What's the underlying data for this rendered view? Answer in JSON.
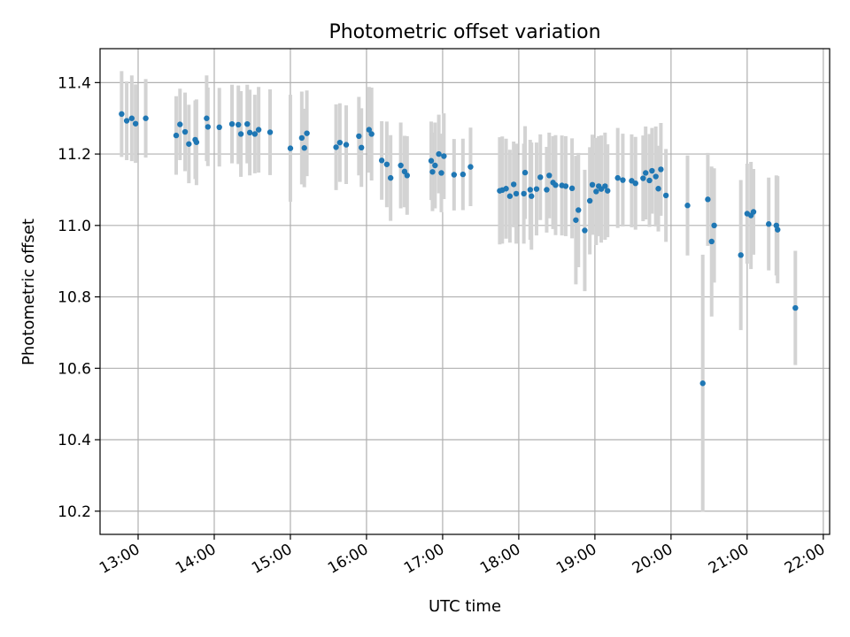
{
  "chart_data": {
    "type": "scatter",
    "title": "Photometric offset variation",
    "xlabel": "UTC time",
    "ylabel": "Photometric offset",
    "xlim": [
      "12:30",
      "22:05"
    ],
    "ylim": [
      10.135,
      11.495
    ],
    "x_ticks": [
      "13:00",
      "14:00",
      "15:00",
      "16:00",
      "17:00",
      "18:00",
      "19:00",
      "20:00",
      "21:00",
      "22:00"
    ],
    "y_ticks": [
      "10.2",
      "10.4",
      "10.6",
      "10.8",
      "11.0",
      "11.2",
      "11.4"
    ],
    "grid": true,
    "colors": {
      "point": "#1f77b4",
      "errorbar": "#d3d3d3",
      "grid": "#b0b0b0"
    },
    "series": [
      {
        "points": [
          {
            "x": "12:47",
            "y": 11.312,
            "err": 0.12
          },
          {
            "x": "12:51",
            "y": 11.293,
            "err": 0.11
          },
          {
            "x": "12:55",
            "y": 11.3,
            "err": 0.12
          },
          {
            "x": "12:58",
            "y": 11.285,
            "err": 0.11
          },
          {
            "x": "13:06",
            "y": 11.3,
            "err": 0.11
          },
          {
            "x": "13:30",
            "y": 11.252,
            "err": 0.11
          },
          {
            "x": "13:33",
            "y": 11.283,
            "err": 0.1
          },
          {
            "x": "13:37",
            "y": 11.262,
            "err": 0.11
          },
          {
            "x": "13:40",
            "y": 11.228,
            "err": 0.11
          },
          {
            "x": "13:45",
            "y": 11.24,
            "err": 0.11
          },
          {
            "x": "13:46",
            "y": 11.233,
            "err": 0.12
          },
          {
            "x": "13:54",
            "y": 11.3,
            "err": 0.12
          },
          {
            "x": "13:55",
            "y": 11.276,
            "err": 0.11
          },
          {
            "x": "14:04",
            "y": 11.275,
            "err": 0.11
          },
          {
            "x": "14:14",
            "y": 11.284,
            "err": 0.11
          },
          {
            "x": "14:19",
            "y": 11.282,
            "err": 0.11
          },
          {
            "x": "14:21",
            "y": 11.256,
            "err": 0.12
          },
          {
            "x": "14:26",
            "y": 11.284,
            "err": 0.11
          },
          {
            "x": "14:28",
            "y": 11.26,
            "err": 0.12
          },
          {
            "x": "14:32",
            "y": 11.256,
            "err": 0.11
          },
          {
            "x": "14:35",
            "y": 11.268,
            "err": 0.12
          },
          {
            "x": "14:44",
            "y": 11.261,
            "err": 0.12
          },
          {
            "x": "15:00",
            "y": 11.216,
            "err": 0.15
          },
          {
            "x": "15:09",
            "y": 11.245,
            "err": 0.13
          },
          {
            "x": "15:11",
            "y": 11.217,
            "err": 0.11
          },
          {
            "x": "15:13",
            "y": 11.258,
            "err": 0.12
          },
          {
            "x": "15:36",
            "y": 11.219,
            "err": 0.12
          },
          {
            "x": "15:39",
            "y": 11.232,
            "err": 0.11
          },
          {
            "x": "15:44",
            "y": 11.226,
            "err": 0.11
          },
          {
            "x": "15:54",
            "y": 11.25,
            "err": 0.11
          },
          {
            "x": "15:56",
            "y": 11.218,
            "err": 0.11
          },
          {
            "x": "16:02",
            "y": 11.268,
            "err": 0.12
          },
          {
            "x": "16:04",
            "y": 11.256,
            "err": 0.13
          },
          {
            "x": "16:12",
            "y": 11.182,
            "err": 0.11
          },
          {
            "x": "16:16",
            "y": 11.171,
            "err": 0.12
          },
          {
            "x": "16:19",
            "y": 11.133,
            "err": 0.12
          },
          {
            "x": "16:27",
            "y": 11.168,
            "err": 0.12
          },
          {
            "x": "16:30",
            "y": 11.151,
            "err": 0.1
          },
          {
            "x": "16:32",
            "y": 11.14,
            "err": 0.11
          },
          {
            "x": "16:51",
            "y": 11.181,
            "err": 0.11
          },
          {
            "x": "16:52",
            "y": 11.15,
            "err": 0.11
          },
          {
            "x": "16:54",
            "y": 11.168,
            "err": 0.12
          },
          {
            "x": "16:57",
            "y": 11.2,
            "err": 0.11
          },
          {
            "x": "16:59",
            "y": 11.147,
            "err": 0.11
          },
          {
            "x": "17:01",
            "y": 11.194,
            "err": 0.12
          },
          {
            "x": "17:09",
            "y": 11.142,
            "err": 0.1
          },
          {
            "x": "17:16",
            "y": 11.143,
            "err": 0.1
          },
          {
            "x": "17:22",
            "y": 11.164,
            "err": 0.11
          },
          {
            "x": "17:45",
            "y": 11.097,
            "err": 0.15
          },
          {
            "x": "17:47",
            "y": 11.099,
            "err": 0.15
          },
          {
            "x": "17:50",
            "y": 11.103,
            "err": 0.14
          },
          {
            "x": "17:53",
            "y": 11.082,
            "err": 0.13
          },
          {
            "x": "17:56",
            "y": 11.115,
            "err": 0.12
          },
          {
            "x": "17:58",
            "y": 11.089,
            "err": 0.14
          },
          {
            "x": "18:04",
            "y": 11.089,
            "err": 0.14
          },
          {
            "x": "18:05",
            "y": 11.148,
            "err": 0.13
          },
          {
            "x": "18:09",
            "y": 11.1,
            "err": 0.14
          },
          {
            "x": "18:10",
            "y": 11.082,
            "err": 0.15
          },
          {
            "x": "18:14",
            "y": 11.102,
            "err": 0.13
          },
          {
            "x": "18:17",
            "y": 11.135,
            "err": 0.12
          },
          {
            "x": "18:22",
            "y": 11.1,
            "err": 0.12
          },
          {
            "x": "18:24",
            "y": 11.14,
            "err": 0.12
          },
          {
            "x": "18:27",
            "y": 11.12,
            "err": 0.13
          },
          {
            "x": "18:29",
            "y": 11.113,
            "err": 0.14
          },
          {
            "x": "18:34",
            "y": 11.112,
            "err": 0.14
          },
          {
            "x": "18:37",
            "y": 11.11,
            "err": 0.14
          },
          {
            "x": "18:42",
            "y": 11.104,
            "err": 0.14
          },
          {
            "x": "18:45",
            "y": 11.015,
            "err": 0.18
          },
          {
            "x": "18:47",
            "y": 11.043,
            "err": 0.16
          },
          {
            "x": "18:52",
            "y": 10.986,
            "err": 0.17
          },
          {
            "x": "18:56",
            "y": 11.069,
            "err": 0.15
          },
          {
            "x": "18:58",
            "y": 11.114,
            "err": 0.14
          },
          {
            "x": "19:01",
            "y": 11.095,
            "err": 0.15
          },
          {
            "x": "19:03",
            "y": 11.11,
            "err": 0.14
          },
          {
            "x": "19:05",
            "y": 11.102,
            "err": 0.15
          },
          {
            "x": "19:08",
            "y": 11.11,
            "err": 0.15
          },
          {
            "x": "19:10",
            "y": 11.097,
            "err": 0.13
          },
          {
            "x": "19:18",
            "y": 11.133,
            "err": 0.14
          },
          {
            "x": "19:22",
            "y": 11.127,
            "err": 0.13
          },
          {
            "x": "19:29",
            "y": 11.125,
            "err": 0.13
          },
          {
            "x": "19:32",
            "y": 11.118,
            "err": 0.13
          },
          {
            "x": "19:38",
            "y": 11.132,
            "err": 0.12
          },
          {
            "x": "19:40",
            "y": 11.147,
            "err": 0.13
          },
          {
            "x": "19:43",
            "y": 11.126,
            "err": 0.13
          },
          {
            "x": "19:45",
            "y": 11.153,
            "err": 0.12
          },
          {
            "x": "19:48",
            "y": 11.137,
            "err": 0.14
          },
          {
            "x": "19:50",
            "y": 11.103,
            "err": 0.12
          },
          {
            "x": "19:52",
            "y": 11.157,
            "err": 0.13
          },
          {
            "x": "19:56",
            "y": 11.084,
            "err": 0.13
          },
          {
            "x": "20:13",
            "y": 11.056,
            "err": 0.14
          },
          {
            "x": "20:25",
            "y": 10.558,
            "err": 0.36
          },
          {
            "x": "20:29",
            "y": 11.073,
            "err": 0.13
          },
          {
            "x": "20:32",
            "y": 10.955,
            "err": 0.21
          },
          {
            "x": "20:34",
            "y": 11.0,
            "err": 0.16
          },
          {
            "x": "20:55",
            "y": 10.917,
            "err": 0.21
          },
          {
            "x": "21:00",
            "y": 11.033,
            "err": 0.14
          },
          {
            "x": "21:03",
            "y": 11.028,
            "err": 0.15
          },
          {
            "x": "21:05",
            "y": 11.038,
            "err": 0.12
          },
          {
            "x": "21:17",
            "y": 11.004,
            "err": 0.13
          },
          {
            "x": "21:23",
            "y": 11.0,
            "err": 0.14
          },
          {
            "x": "21:24",
            "y": 10.988,
            "err": 0.15
          },
          {
            "x": "21:38",
            "y": 10.769,
            "err": 0.16
          }
        ]
      }
    ]
  }
}
